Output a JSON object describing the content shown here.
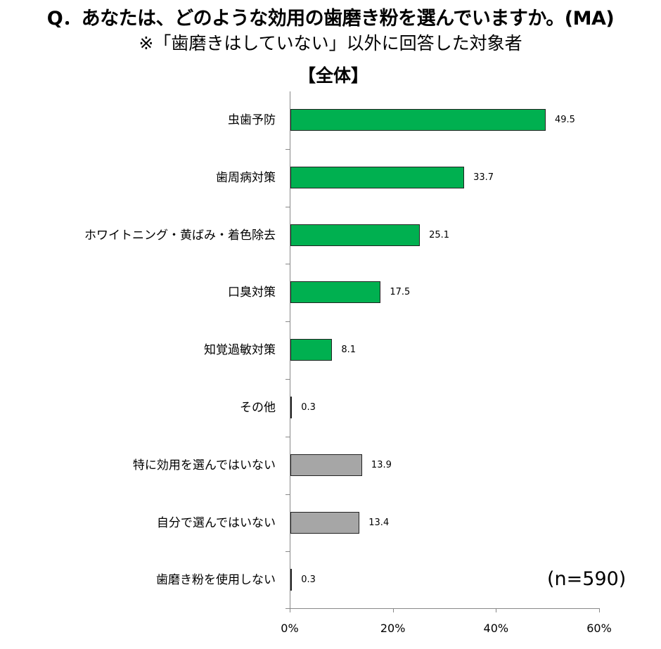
{
  "title": "Q．あなたは、どのような効用の歯磨き粉を選んでいますか。(MA)",
  "subtitle": "※「歯磨きはしていない」以外に回答した対象者",
  "group_label": "【全体】",
  "sample_size": "(n=590)",
  "colors": {
    "primary": "#00B050",
    "secondary": "#A6A6A6",
    "border": "#222222",
    "axis": "#888888"
  },
  "chart_data": {
    "type": "bar",
    "orientation": "horizontal",
    "title": "Q．あなたは、どのような効用の歯磨き粉を選んでいますか。(MA)",
    "subtitle": "※「歯磨きはしていない」以外に回答した対象者",
    "categories": [
      "虫歯予防",
      "歯周病対策",
      "ホワイトニング・黄ばみ・着色除去",
      "口臭対策",
      "知覚過敏対策",
      "その他",
      "特に効用を選んではいない",
      "自分で選んではいない",
      "歯磨き粉を使用しない"
    ],
    "values": [
      49.5,
      33.7,
      25.1,
      17.5,
      8.1,
      0.3,
      13.9,
      13.4,
      0.3
    ],
    "value_labels": [
      "49.5",
      "33.7",
      "25.1",
      "17.5",
      "8.1",
      "0.3",
      "13.9",
      "13.4",
      "0.3"
    ],
    "bar_colors": [
      "#00B050",
      "#00B050",
      "#00B050",
      "#00B050",
      "#00B050",
      "#00B050",
      "#A6A6A6",
      "#A6A6A6",
      "#A6A6A6"
    ],
    "xlabel": "",
    "ylabel": "",
    "xlim": [
      0,
      60
    ],
    "xticks": [
      "0%",
      "20%",
      "40%",
      "60%"
    ],
    "grid": false,
    "legend": null,
    "annotations": [
      "【全体】",
      "(n=590)"
    ],
    "unit": "%"
  }
}
